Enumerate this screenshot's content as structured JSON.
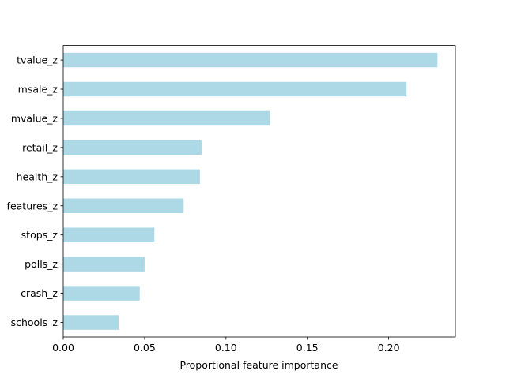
{
  "chart_data": {
    "type": "bar",
    "orientation": "horizontal",
    "title": "",
    "xlabel": "Proportional feature importance",
    "ylabel": "",
    "categories": [
      "tvalue_z",
      "msale_z",
      "mvalue_z",
      "retail_z",
      "health_z",
      "features_z",
      "stops_z",
      "polls_z",
      "crash_z",
      "schools_z"
    ],
    "values": [
      0.23,
      0.211,
      0.127,
      0.085,
      0.084,
      0.074,
      0.056,
      0.05,
      0.047,
      0.034
    ],
    "xlim": [
      0.0,
      0.241
    ],
    "xticks": [
      0.0,
      0.05,
      0.1,
      0.15,
      0.2
    ],
    "xtick_labels": [
      "0.00",
      "0.05",
      "0.10",
      "0.15",
      "0.20"
    ],
    "grid": false,
    "legend": "none",
    "bar_color": "#add8e6"
  }
}
